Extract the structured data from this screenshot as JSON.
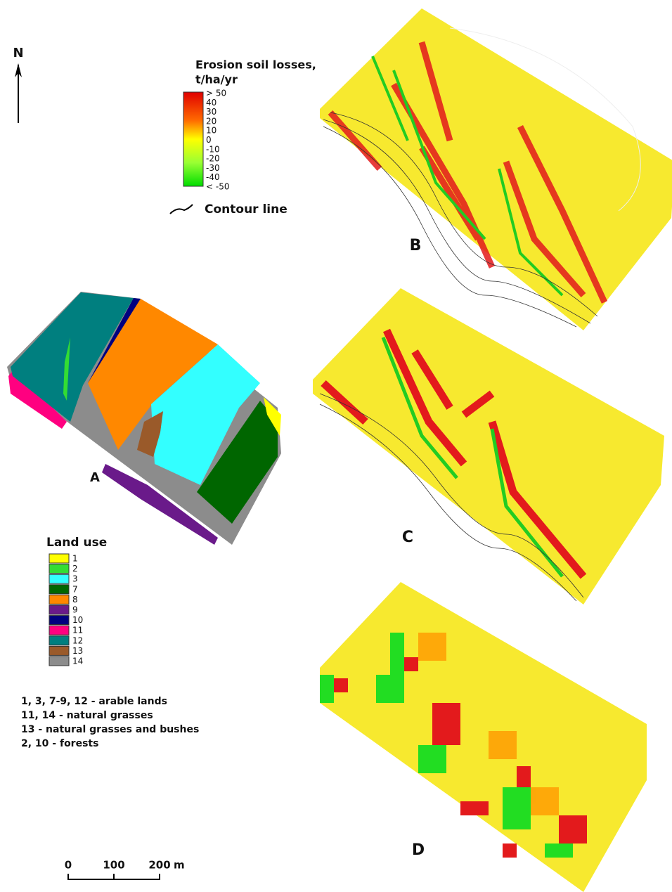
{
  "north": "N",
  "erosion_legend": {
    "title": [
      "Erosion soil losses,",
      "t/ha/yr"
    ],
    "labels": [
      "> 50",
      "40",
      "30",
      "20",
      "10",
      "0",
      "-10",
      "-20",
      "-30",
      "-40",
      "< -50"
    ],
    "contour_label": "Contour line"
  },
  "panels": [
    "A",
    "B",
    "C",
    "D"
  ],
  "land_use": {
    "title": "Land use",
    "items": [
      {
        "label": "1",
        "color": "#ffff00"
      },
      {
        "label": "2",
        "color": "#33dd33"
      },
      {
        "label": "3",
        "color": "#33ffff"
      },
      {
        "label": "7",
        "color": "#006600"
      },
      {
        "label": "8",
        "color": "#ff8800"
      },
      {
        "label": "9",
        "color": "#6a1a8a"
      },
      {
        "label": "10",
        "color": "#00007f"
      },
      {
        "label": "11",
        "color": "#ff0080"
      },
      {
        "label": "12",
        "color": "#007f7f"
      },
      {
        "label": "13",
        "color": "#9a5a2a"
      },
      {
        "label": "14",
        "color": "#8c8c8c"
      }
    ],
    "notes": [
      "1, 3, 7-9, 12 - arable lands",
      "11, 14 - natural grasses",
      "13 - natural grasses and bushes",
      "2, 10 - forests"
    ]
  },
  "scale": {
    "ticks": [
      0,
      100,
      200
    ],
    "unit": "m"
  }
}
